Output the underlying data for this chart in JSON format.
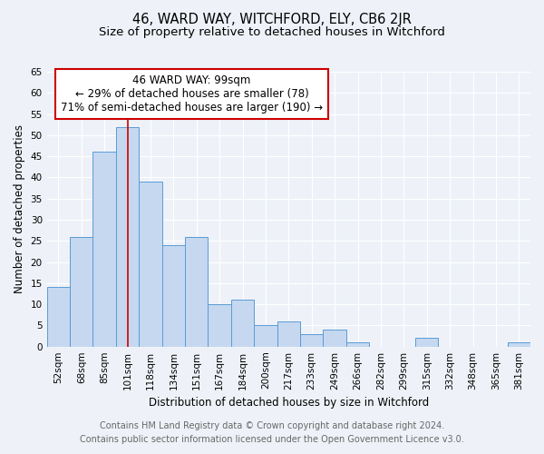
{
  "title": "46, WARD WAY, WITCHFORD, ELY, CB6 2JR",
  "subtitle": "Size of property relative to detached houses in Witchford",
  "xlabel": "Distribution of detached houses by size in Witchford",
  "ylabel": "Number of detached properties",
  "categories": [
    "52sqm",
    "68sqm",
    "85sqm",
    "101sqm",
    "118sqm",
    "134sqm",
    "151sqm",
    "167sqm",
    "184sqm",
    "200sqm",
    "217sqm",
    "233sqm",
    "249sqm",
    "266sqm",
    "282sqm",
    "299sqm",
    "315sqm",
    "332sqm",
    "348sqm",
    "365sqm",
    "381sqm"
  ],
  "values": [
    14,
    26,
    46,
    52,
    39,
    24,
    26,
    10,
    11,
    5,
    6,
    3,
    4,
    1,
    0,
    0,
    2,
    0,
    0,
    0,
    1
  ],
  "bar_color": "#c5d8f0",
  "bar_edge_color": "#5b9bd5",
  "vline_x_index": 3,
  "vline_color": "#cc0000",
  "annotation_text": "46 WARD WAY: 99sqm\n← 29% of detached houses are smaller (78)\n71% of semi-detached houses are larger (190) →",
  "annotation_box_color": "#ffffff",
  "annotation_box_edge": "#cc0000",
  "ylim": [
    0,
    65
  ],
  "yticks": [
    0,
    5,
    10,
    15,
    20,
    25,
    30,
    35,
    40,
    45,
    50,
    55,
    60,
    65
  ],
  "footer_line1": "Contains HM Land Registry data © Crown copyright and database right 2024.",
  "footer_line2": "Contains public sector information licensed under the Open Government Licence v3.0.",
  "bg_color": "#eef2f8",
  "grid_color": "#ffffff",
  "title_fontsize": 10.5,
  "subtitle_fontsize": 9.5,
  "axis_label_fontsize": 8.5,
  "tick_fontsize": 7.5,
  "annotation_fontsize": 8.5,
  "footer_fontsize": 7.0,
  "footer_color": "#666666"
}
